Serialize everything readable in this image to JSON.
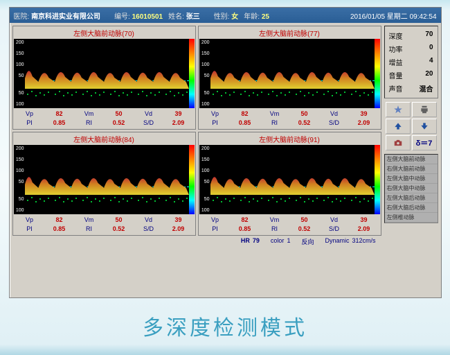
{
  "titlebar": {
    "hospital_label": "医院:",
    "hospital": "南京科进实业有限公司",
    "id_label": "编号:",
    "id": "16010501",
    "name_label": "姓名:",
    "name": "张三",
    "gender_label": "性别:",
    "gender": "女",
    "age_label": "年龄:",
    "age": "25",
    "datetime": "2016/01/05 星期二  09:42:54"
  },
  "panels": [
    {
      "title": "左侧大脑前动脉(70)",
      "metrics": {
        "Vp": "82",
        "Vm": "50",
        "Vd": "39",
        "PI": "0.85",
        "RI": "0.52",
        "SD": "2.09"
      }
    },
    {
      "title": "左侧大脑前动脉(77)",
      "metrics": {
        "Vp": "82",
        "Vm": "50",
        "Vd": "39",
        "PI": "0.85",
        "RI": "0.52",
        "SD": "2.09"
      }
    },
    {
      "title": "左侧大脑前动脉(84)",
      "metrics": {
        "Vp": "82",
        "Vm": "50",
        "Vd": "39",
        "PI": "0.85",
        "RI": "0.52",
        "SD": "2.09"
      }
    },
    {
      "title": "左侧大脑前动脉(91)",
      "metrics": {
        "Vp": "82",
        "Vm": "50",
        "Vd": "39",
        "PI": "0.85",
        "RI": "0.52",
        "SD": "2.09"
      }
    }
  ],
  "spectrum": {
    "y_ticks": [
      "200",
      "150",
      "100",
      "50",
      "",
      "50",
      "100"
    ],
    "wave_fill_top": "#c03030",
    "wave_fill_mid": "#d08020",
    "wave_fill_bot": "#e0d030",
    "colorbar": [
      "#ff0000",
      "#ff8000",
      "#ffff00",
      "#00ff00",
      "#00ffff",
      "#0000ff"
    ]
  },
  "metric_labels": {
    "Vp": "Vp",
    "Vm": "Vm",
    "Vd": "Vd",
    "PI": "PI",
    "RI": "RI",
    "SD": "S/D"
  },
  "params": {
    "depth": {
      "label": "深度",
      "value": "70"
    },
    "power": {
      "label": "功率",
      "value": "0"
    },
    "gain": {
      "label": "增益",
      "value": "4"
    },
    "volume": {
      "label": "音量",
      "value": "20"
    },
    "sound": {
      "label": "声音",
      "value": "混合"
    }
  },
  "delta": "δ＝7",
  "vessels": [
    "左侧大脑前动脉",
    "右侧大脑前动脉",
    "左侧大脑中动脉",
    "右侧大脑中动脉",
    "左侧大脑后动脉",
    "右侧大脑后动脉",
    "左侧椎动脉",
    "右侧椎动脉",
    "基底动脉"
  ],
  "bottom": {
    "hr_label": "HR",
    "hr": "79",
    "color_label": "color",
    "color": "1",
    "dir_label": "反向",
    "dyn_label": "Dynamic",
    "dyn": "312cm/s"
  },
  "caption": "多深度检测模式"
}
